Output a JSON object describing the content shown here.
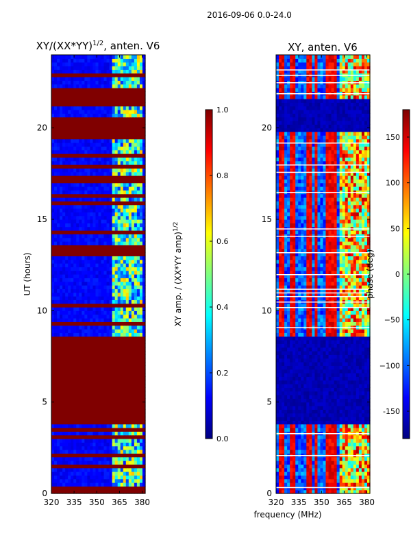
{
  "suptitle": "2016-09-06 0.0-24.0",
  "colors": {
    "jet": [
      "#00007f",
      "#0000ff",
      "#007fff",
      "#00ffff",
      "#7fff7f",
      "#ffff00",
      "#ff7f00",
      "#ff0000",
      "#7f0000"
    ],
    "frame": "#000000"
  },
  "chart_data": [
    {
      "type": "heatmap",
      "title_main": "XY/(XX*YY)",
      "title_sup": "1/2",
      "title_tail": ", anten. V6",
      "xlabel": "",
      "ylabel": "UT (hours)",
      "xlim": [
        320,
        382
      ],
      "ylim": [
        0,
        24
      ],
      "xticks": [
        320,
        335,
        350,
        365,
        380
      ],
      "yticks": [
        0,
        5,
        10,
        15,
        20
      ],
      "colorbar": {
        "label": "XY amp. / (XX*YY amp)",
        "label_sup": "1/2",
        "range": [
          0.0,
          1.0
        ],
        "ticks": [
          "0.0",
          "0.2",
          "0.4",
          "0.6",
          "0.8",
          "1.0"
        ]
      },
      "saturated_bands_ut": [
        [
          0.1,
          0.35
        ],
        [
          1.5,
          1.6
        ],
        [
          2.0,
          2.1
        ],
        [
          3.0,
          3.1
        ],
        [
          3.4,
          3.5
        ],
        [
          3.9,
          8.55
        ],
        [
          9.3,
          9.4
        ],
        [
          10.2,
          10.3
        ],
        [
          13.0,
          13.5
        ],
        [
          14.3,
          14.4
        ],
        [
          15.8,
          15.95
        ],
        [
          16.2,
          16.4
        ],
        [
          17.0,
          17.3
        ],
        [
          17.8,
          17.9
        ],
        [
          18.5,
          18.6
        ],
        [
          19.5,
          20.5
        ],
        [
          21.2,
          21.3
        ],
        [
          21.5,
          22.2
        ],
        [
          22.8,
          23.0
        ]
      ],
      "bright_feature_mhz": [
        361,
        380
      ]
    },
    {
      "type": "heatmap",
      "title_main": "XY, anten. V6",
      "xlabel": "frequency (MHz)",
      "ylabel": "",
      "xlim": [
        320,
        382
      ],
      "ylim": [
        0,
        24
      ],
      "xticks": [
        320,
        335,
        350,
        365,
        380
      ],
      "yticks": [
        0,
        5,
        10,
        15,
        20
      ],
      "colorbar": {
        "label": "phase (deg)",
        "range": [
          -180,
          180
        ],
        "ticks": [
          "-150",
          "−100",
          "−50",
          "0",
          "50",
          "100",
          "150"
        ]
      },
      "lowphase_bands_ut": [
        [
          3.9,
          8.6
        ],
        [
          19.8,
          21.5
        ]
      ],
      "white_lines_ut": [
        0.35,
        2.1,
        3.3,
        9.1,
        10.2,
        10.5,
        10.8,
        11.0,
        11.2,
        12.0,
        13.2,
        14.1,
        14.5,
        16.5,
        17.6,
        18.0,
        19.2,
        21.9,
        22.5,
        22.9,
        23.2
      ]
    }
  ]
}
